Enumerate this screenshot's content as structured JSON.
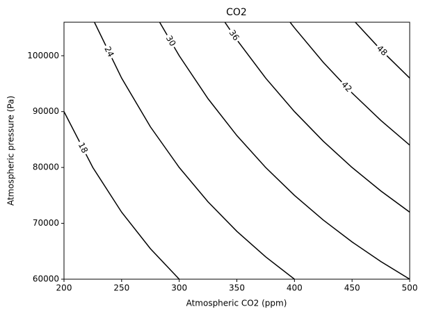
{
  "chart_data": {
    "type": "contour",
    "title": "CO2",
    "x_label": "Atmospheric CO2 (ppm)",
    "y_label": "Atmospheric pressure (Pa)",
    "xlim": [
      200,
      500
    ],
    "ylim": [
      60000,
      106000
    ],
    "xticks": [
      200,
      250,
      300,
      350,
      400,
      450,
      500
    ],
    "yticks": [
      60000,
      70000,
      80000,
      90000,
      100000
    ],
    "color": "#000000",
    "contours": [
      {
        "level": 18,
        "x": [
          200,
          225,
          250,
          275,
          300
        ],
        "y": [
          90000,
          80000,
          72000,
          65455,
          60000
        ]
      },
      {
        "level": 24,
        "x": [
          226.4,
          250,
          275,
          300,
          325,
          350,
          375,
          400
        ],
        "y": [
          106000,
          96000,
          87273,
          80000,
          73846,
          68571,
          64000,
          60000
        ]
      },
      {
        "level": 30,
        "x": [
          283,
          300,
          325,
          350,
          375,
          400,
          425,
          450,
          475,
          500
        ],
        "y": [
          106000,
          100000,
          92308,
          85714,
          80000,
          75000,
          70588,
          66667,
          63158,
          60000
        ]
      },
      {
        "level": 36,
        "x": [
          339.6,
          350,
          375,
          400,
          425,
          450,
          475,
          500
        ],
        "y": [
          106000,
          102857,
          96000,
          90000,
          84706,
          80000,
          75789,
          72000
        ]
      },
      {
        "level": 42,
        "x": [
          396.2,
          400,
          425,
          450,
          475,
          500
        ],
        "y": [
          106000,
          105000,
          98824,
          93333,
          88421,
          84000
        ]
      },
      {
        "level": 48,
        "x": [
          452.8,
          475,
          500
        ],
        "y": [
          106000,
          101053,
          96000
        ]
      }
    ]
  }
}
